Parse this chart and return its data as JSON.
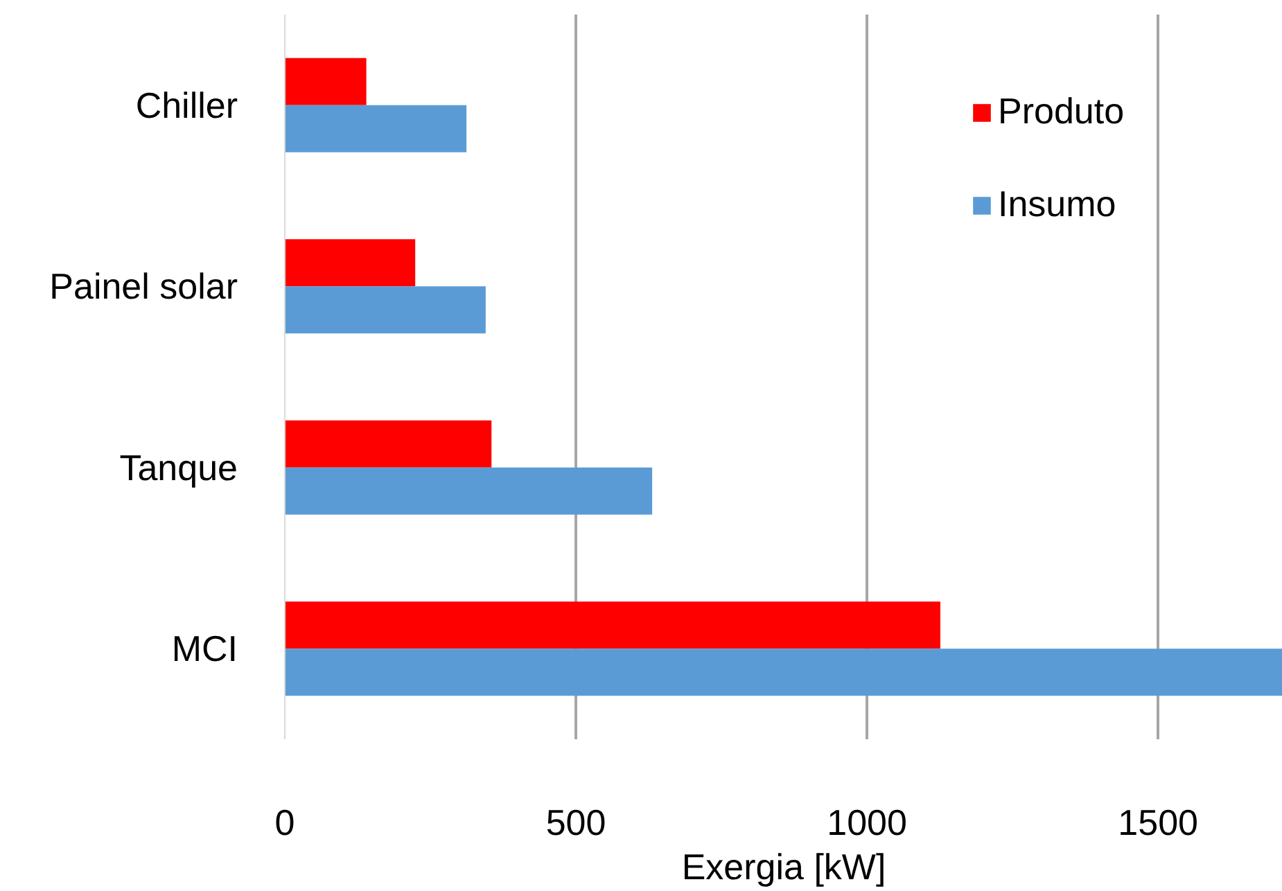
{
  "chart_data": {
    "type": "bar",
    "orientation": "horizontal",
    "xlabel": "Exergia [kW]",
    "categories": [
      "Chiller",
      "Painel solar",
      "Tanque",
      "MCI"
    ],
    "series": [
      {
        "name": "Produto",
        "color": "#ff0000",
        "values": [
          140,
          224,
          355,
          1126
        ]
      },
      {
        "name": "Insumo",
        "color": "#5b9bd5",
        "values": [
          312,
          345,
          631,
          1714
        ]
      }
    ],
    "xlim": [
      0,
      1714
    ],
    "xticks": [
      0,
      500,
      1000,
      1500
    ],
    "grid": "x",
    "legend": "top right"
  }
}
